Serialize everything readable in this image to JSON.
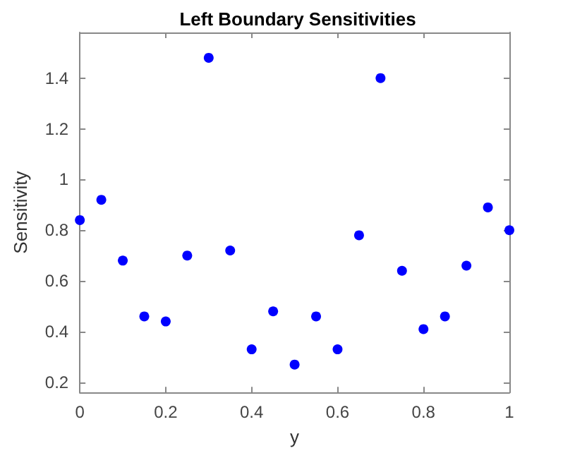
{
  "chart_data": {
    "type": "scatter",
    "title": "Left Boundary Sensitivities",
    "xlabel": "y",
    "ylabel": "Sensitivity",
    "x": [
      0,
      0.05,
      0.1,
      0.15,
      0.2,
      0.25,
      0.3,
      0.35,
      0.4,
      0.45,
      0.5,
      0.55,
      0.6,
      0.65,
      0.7,
      0.75,
      0.8,
      0.85,
      0.9,
      0.95,
      1
    ],
    "series": [
      {
        "color": "#0000ff",
        "values": [
          0.84,
          0.92,
          0.68,
          0.46,
          0.44,
          0.7,
          1.48,
          0.72,
          0.33,
          0.48,
          0.27,
          0.46,
          0.33,
          0.78,
          1.4,
          0.64,
          0.41,
          0.46,
          0.66,
          0.89,
          0.8
        ]
      }
    ],
    "xlim": [
      0,
      1
    ],
    "xticks": [
      0,
      0.2,
      0.4,
      0.6,
      0.8,
      1
    ],
    "ylim": [
      0.16,
      1.58
    ],
    "yticks": [
      0.2,
      0.4,
      0.6,
      0.8,
      1,
      1.2,
      1.4
    ],
    "grid": false,
    "marker": "circle"
  }
}
